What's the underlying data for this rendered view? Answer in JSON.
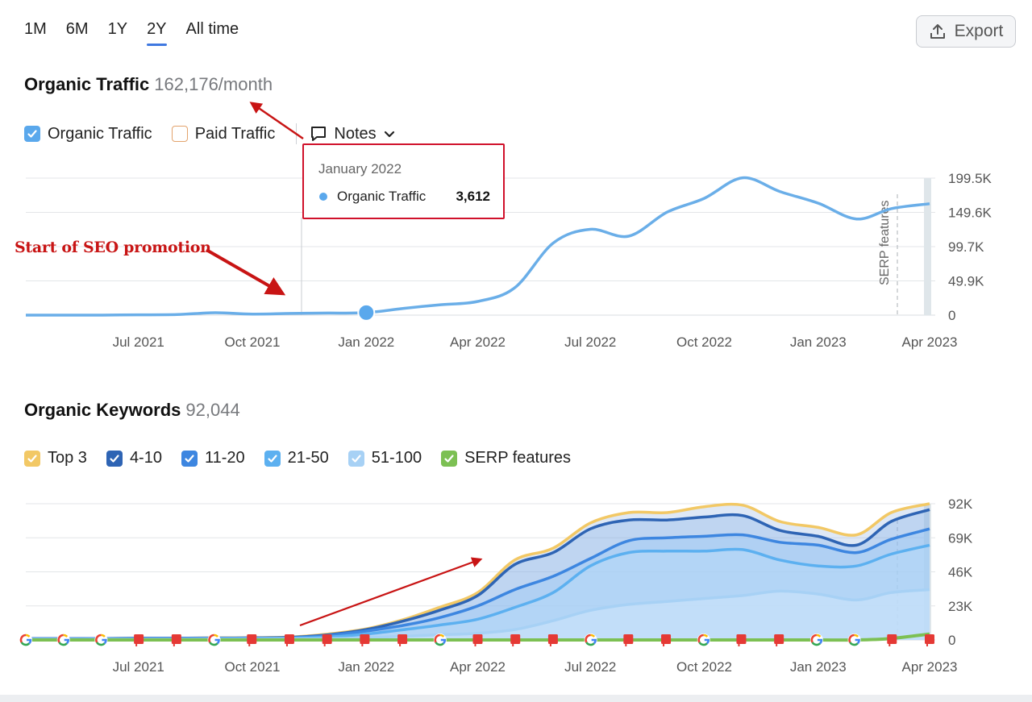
{
  "toolbar": {
    "ranges": [
      "1M",
      "6M",
      "1Y",
      "2Y",
      "All time"
    ],
    "active_range": "2Y",
    "export_label": "Export"
  },
  "traffic": {
    "title": "Organic Traffic",
    "value": "162,176/month",
    "legend": {
      "organic": "Organic Traffic",
      "paid": "Paid Traffic",
      "notes": "Notes"
    },
    "tooltip": {
      "date": "January 2022",
      "label": "Organic Traffic",
      "value": "3,612"
    },
    "annotation": "Start of SEO promotion",
    "serp_marker": "SERP features"
  },
  "keywords": {
    "title": "Organic Keywords",
    "value": "92,044",
    "legend": [
      "Top 3",
      "4-10",
      "11-20",
      "21-50",
      "51-100",
      "SERP features"
    ]
  },
  "colors": {
    "organic": "#6aaee8",
    "paid": "#f0a35e",
    "top3": "#f2c865",
    "r4_10": "#2e64b4",
    "r11_20": "#3d86e0",
    "r21_50": "#5cb0f0",
    "r51_100": "#a7d1f5",
    "serp": "#7cc053",
    "annotation": "#c81414"
  },
  "chart_data": [
    {
      "type": "line",
      "title": "Organic Traffic",
      "x_ticks": [
        "Jul 2021",
        "Oct 2021",
        "Jan 2022",
        "Apr 2022",
        "Jul 2022",
        "Oct 2022",
        "Jan 2023",
        "Apr 2023"
      ],
      "y_ticks": [
        "0",
        "49.9K",
        "99.7K",
        "149.6K",
        "199.5K"
      ],
      "ylim": [
        0,
        199500
      ],
      "grid": true,
      "series": [
        {
          "name": "Organic Traffic",
          "x": [
            "2021-04-01",
            "2021-05-01",
            "2021-06-01",
            "2021-07-01",
            "2021-08-01",
            "2021-09-01",
            "2021-10-01",
            "2021-11-01",
            "2021-12-01",
            "2022-01-01",
            "2022-02-01",
            "2022-03-01",
            "2022-04-01",
            "2022-05-01",
            "2022-06-01",
            "2022-07-01",
            "2022-08-01",
            "2022-09-01",
            "2022-10-01",
            "2022-11-01",
            "2022-12-01",
            "2023-01-01",
            "2023-02-01",
            "2023-03-01",
            "2023-04-01"
          ],
          "values": [
            0,
            0,
            0,
            500,
            800,
            3500,
            1500,
            2500,
            3000,
            3612,
            10000,
            15000,
            20000,
            40000,
            105000,
            125000,
            115000,
            150000,
            170000,
            200000,
            180000,
            163000,
            140000,
            155000,
            162176
          ]
        }
      ]
    },
    {
      "type": "area",
      "title": "Organic Keywords",
      "x_ticks": [
        "Jul 2021",
        "Oct 2021",
        "Jan 2022",
        "Apr 2022",
        "Jul 2022",
        "Oct 2022",
        "Jan 2023",
        "Apr 2023"
      ],
      "y_ticks": [
        "0",
        "23K",
        "46K",
        "69K",
        "92K"
      ],
      "ylim": [
        0,
        92000
      ],
      "grid": true,
      "x": [
        "2021-04-01",
        "2021-05-01",
        "2021-06-01",
        "2021-07-01",
        "2021-08-01",
        "2021-09-01",
        "2021-10-01",
        "2021-11-01",
        "2021-12-01",
        "2022-01-01",
        "2022-02-01",
        "2022-03-01",
        "2022-04-01",
        "2022-05-01",
        "2022-06-01",
        "2022-07-01",
        "2022-08-01",
        "2022-09-01",
        "2022-10-01",
        "2022-11-01",
        "2022-12-01",
        "2023-01-01",
        "2023-02-01",
        "2023-03-01",
        "2023-04-01"
      ],
      "series": [
        {
          "name": "Top 3",
          "values": [
            1000,
            1000,
            1000,
            1200,
            1200,
            1400,
            1500,
            2000,
            4000,
            7500,
            14000,
            22000,
            32000,
            54000,
            62000,
            79000,
            86000,
            86000,
            90000,
            91000,
            80000,
            76000,
            71000,
            86000,
            92000
          ]
        },
        {
          "name": "4-10",
          "values": [
            1000,
            1000,
            1000,
            1200,
            1200,
            1300,
            1400,
            1800,
            3500,
            7000,
            13000,
            20000,
            30000,
            51000,
            59000,
            75000,
            81000,
            81000,
            83000,
            84000,
            74000,
            70000,
            64000,
            80000,
            88000
          ]
        },
        {
          "name": "11-20",
          "values": [
            800,
            800,
            900,
            1000,
            1000,
            1100,
            1200,
            1500,
            3000,
            6000,
            10000,
            15000,
            23000,
            34000,
            43000,
            55000,
            67000,
            69000,
            70000,
            71000,
            66000,
            64000,
            59000,
            68000,
            75000
          ]
        },
        {
          "name": "21-50",
          "values": [
            600,
            600,
            700,
            800,
            800,
            900,
            1000,
            1200,
            2000,
            4000,
            7000,
            10000,
            14000,
            22000,
            32000,
            50000,
            59000,
            60000,
            60000,
            61000,
            54000,
            50000,
            50000,
            58000,
            64000
          ]
        },
        {
          "name": "51-100",
          "values": [
            300,
            300,
            300,
            400,
            400,
            500,
            500,
            600,
            800,
            1500,
            2500,
            3500,
            4500,
            7000,
            13000,
            20000,
            24000,
            26000,
            28000,
            30000,
            33000,
            31000,
            27000,
            32000,
            34000
          ]
        },
        {
          "name": "SERP features",
          "values": [
            0,
            0,
            0,
            0,
            0,
            0,
            0,
            0,
            0,
            0,
            0,
            0,
            0,
            0,
            0,
            0,
            0,
            0,
            0,
            0,
            0,
            0,
            0,
            1000,
            4000
          ]
        }
      ],
      "annotation_markers": [
        "G",
        "G",
        "G",
        "F",
        "F",
        "G",
        "F",
        "F",
        "F",
        "F",
        "F",
        "G",
        "F",
        "F",
        "F",
        "G",
        "F",
        "F",
        "G",
        "F",
        "F",
        "G",
        "G",
        "F",
        "F"
      ]
    }
  ]
}
